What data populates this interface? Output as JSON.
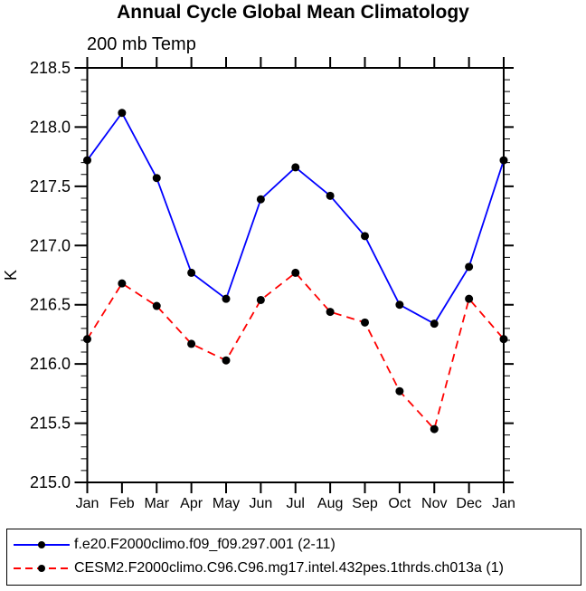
{
  "title": "Annual Cycle Global Mean Climatology",
  "subtitle": "200 mb Temp",
  "chart_data": {
    "type": "line",
    "x": [
      "Jan",
      "Feb",
      "Mar",
      "Apr",
      "May",
      "Jun",
      "Jul",
      "Aug",
      "Sep",
      "Oct",
      "Nov",
      "Dec",
      "Jan"
    ],
    "series": [
      {
        "name": "f.e20.F2000climo.f09_f09.297.001 (2-11)",
        "color": "#0000ff",
        "style": "solid",
        "marker": "filled-circle",
        "marker_color": "#000000",
        "values": [
          217.72,
          218.12,
          217.57,
          216.77,
          216.55,
          217.39,
          217.66,
          217.42,
          217.08,
          216.5,
          216.34,
          216.82,
          217.72
        ]
      },
      {
        "name": "CESM2.F2000climo.C96.C96.mg17.intel.432pes.1thrds.ch013a (1)",
        "color": "#ff0000",
        "style": "dashed",
        "marker": "filled-circle",
        "marker_color": "#000000",
        "values": [
          216.21,
          216.68,
          216.49,
          216.17,
          216.03,
          216.54,
          216.77,
          216.44,
          216.35,
          215.77,
          215.45,
          216.55,
          216.21
        ]
      }
    ],
    "xlabel": "",
    "ylabel": "K",
    "ylim": [
      215.0,
      218.5
    ],
    "ytick_step": 0.5,
    "yminor_step": 0.1,
    "ytick_labels": [
      "215.0",
      "215.5",
      "216.0",
      "216.5",
      "217.0",
      "217.5",
      "218.0",
      "218.5"
    ],
    "grid": false,
    "legend_position": "bottom",
    "frame_color": "#000000",
    "background_color": "#ffffff"
  }
}
